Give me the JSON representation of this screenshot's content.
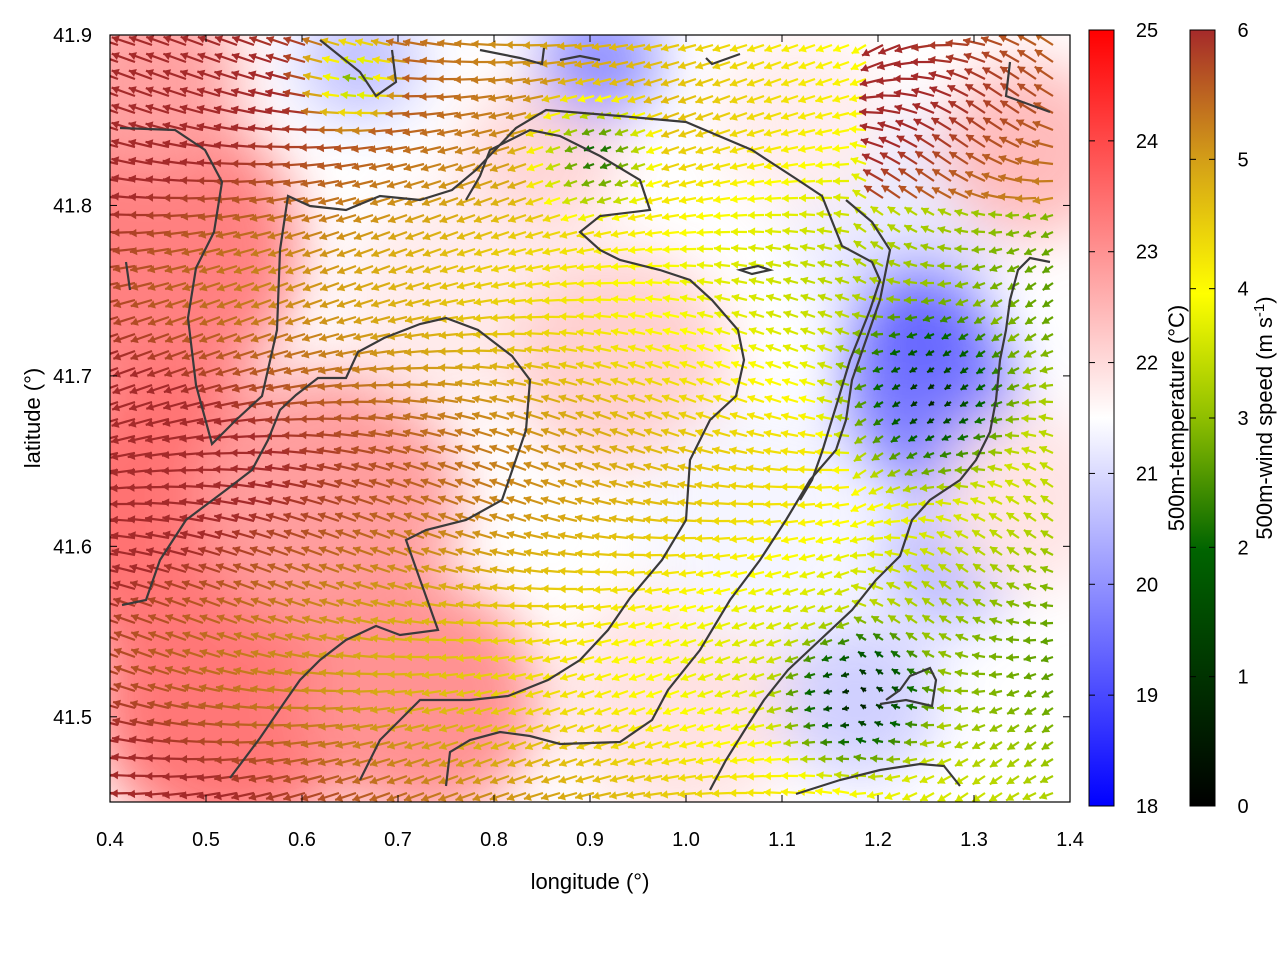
{
  "chart_data": {
    "type": "heatmap",
    "title": "",
    "xlabel": "longitude (°)",
    "ylabel": "latitude (°)",
    "xlim": [
      0.4,
      1.4
    ],
    "ylim": [
      41.45,
      41.9
    ],
    "x_ticks": [
      "0.4",
      "0.5",
      "0.6",
      "0.7",
      "0.8",
      "0.9",
      "1.0",
      "1.1",
      "1.2",
      "1.3",
      "1.4"
    ],
    "y_ticks": [
      "41.5",
      "41.6",
      "41.7",
      "41.8",
      "41.9"
    ],
    "grid": false,
    "overlay": "wind vectors colored by speed, black coastline/contour lines",
    "colorbars": [
      {
        "label": "500m-temperature (°C)",
        "min": 18,
        "max": 25,
        "ticks": [
          "18",
          "19",
          "20",
          "21",
          "22",
          "23",
          "24",
          "25"
        ],
        "colors": [
          "#0000ff",
          "#ffffff",
          "#ff0000"
        ]
      },
      {
        "label": "500m-wind speed (m s-1)",
        "label_main": "500m-wind speed (m s",
        "label_sup": "-1",
        "label_end": ")",
        "min": 0,
        "max": 6,
        "ticks": [
          "0",
          "1",
          "2",
          "3",
          "4",
          "5",
          "6"
        ],
        "colors": [
          "#000000",
          "#006400",
          "#8fbf00",
          "#ffff00",
          "#d4a017",
          "#a52a2a"
        ]
      }
    ]
  }
}
